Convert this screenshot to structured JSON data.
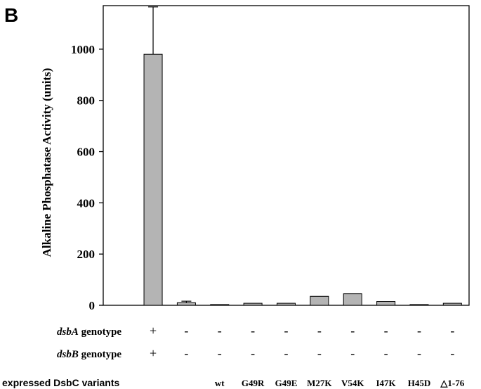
{
  "panel_label": "B",
  "chart_data": {
    "type": "bar",
    "ylabel": "Alkaline Phosphatase Activity (units)",
    "ylim": [
      0,
      1170
    ],
    "yticks": [
      0,
      200,
      400,
      600,
      800,
      1000
    ],
    "grid": false,
    "categories": [
      "",
      "",
      "",
      "wt",
      "G49R",
      "G49E",
      "M27K",
      "V54K",
      "I47K",
      "H45D",
      "△1-76"
    ],
    "values": [
      0,
      980,
      10,
      3,
      8,
      8,
      35,
      45,
      15,
      3,
      8
    ],
    "errors": [
      0,
      185,
      6,
      0,
      0,
      0,
      0,
      0,
      0,
      0,
      0
    ],
    "bar_color": "#b4b4b4"
  },
  "rows": {
    "dsbA": {
      "gene": "dsbA",
      "suffix": " genotype",
      "marks": [
        "",
        "+",
        "-",
        "-",
        "-",
        "-",
        "-",
        "-",
        "-",
        "-",
        "-"
      ]
    },
    "dsbB": {
      "gene": "dsbB",
      "suffix": " genotype",
      "marks": [
        "",
        "+",
        "-",
        "-",
        "-",
        "-",
        "-",
        "-",
        "-",
        "-",
        "-"
      ]
    }
  },
  "variants_label": "expressed DsbC variants"
}
